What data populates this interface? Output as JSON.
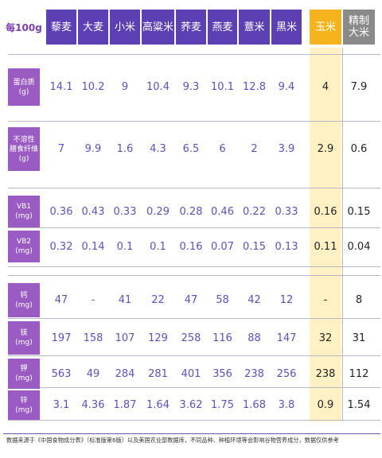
{
  "corner_label": "每100g",
  "columns": [
    {
      "label": "藜麦",
      "kind": "normal"
    },
    {
      "label": "大麦",
      "kind": "normal"
    },
    {
      "label": "小米",
      "kind": "normal"
    },
    {
      "label": "高粱米",
      "kind": "normal"
    },
    {
      "label": "荞麦",
      "kind": "normal"
    },
    {
      "label": "燕麦",
      "kind": "normal"
    },
    {
      "label": "薏米",
      "kind": "normal"
    },
    {
      "label": "黑米",
      "kind": "normal"
    },
    {
      "label": "玉米",
      "kind": "corn"
    },
    {
      "label": "精制\n大米",
      "kind": "rice"
    }
  ],
  "rows": [
    {
      "label": "蛋白质\n(g)",
      "values": [
        "14.1",
        "10.2",
        "9",
        "10.4",
        "9.3",
        "10.1",
        "12.8",
        "9.4",
        "4",
        "7.9"
      ]
    },
    {
      "label": "不溶性\n膳食纤维\n(g)",
      "values": [
        "7",
        "9.9",
        "1.6",
        "4.3",
        "6.5",
        "6",
        "2",
        "3.9",
        "2.9",
        "0.6"
      ]
    },
    {
      "label": "VB1\n(mg)",
      "values": [
        "0.36",
        "0.43",
        "0.33",
        "0.29",
        "0.28",
        "0.46",
        "0.22",
        "0.33",
        "0.16",
        "0.15"
      ]
    },
    {
      "label": "VB2\n(mg)",
      "values": [
        "0.32",
        "0.14",
        "0.1",
        "0.1",
        "0.16",
        "0.07",
        "0.15",
        "0.13",
        "0.11",
        "0.04"
      ]
    },
    {
      "label": "钙\n(mg)",
      "values": [
        "47",
        "-",
        "41",
        "22",
        "47",
        "58",
        "42",
        "12",
        "-",
        "8"
      ]
    },
    {
      "label": "镁\n(mg)",
      "values": [
        "197",
        "158",
        "107",
        "129",
        "258",
        "116",
        "88",
        "147",
        "32",
        "31"
      ]
    },
    {
      "label": "钾\n(mg)",
      "values": [
        "563",
        "49",
        "284",
        "281",
        "401",
        "356",
        "238",
        "256",
        "238",
        "112"
      ]
    },
    {
      "label": "锌\n(mg)",
      "values": [
        "3.1",
        "4.36",
        "1.87",
        "1.64",
        "3.62",
        "1.75",
        "1.68",
        "3.8",
        "0.9",
        "1.54"
      ]
    }
  ],
  "footer": "数据来源于《中国食物成分表》（标准版第6版）以及美国农业部数据库，不同品种、种植环境等会影响谷物营养成分，数据仅供参考",
  "colors": {
    "header_purple": "#5b3fb3",
    "row_label_purple": "#9a5cc2",
    "corn_yellow": "#f5b41e",
    "corn_band": "#fff1c4",
    "rice_gray": "#8a8a8a",
    "value_blue": "#5a52b8"
  }
}
